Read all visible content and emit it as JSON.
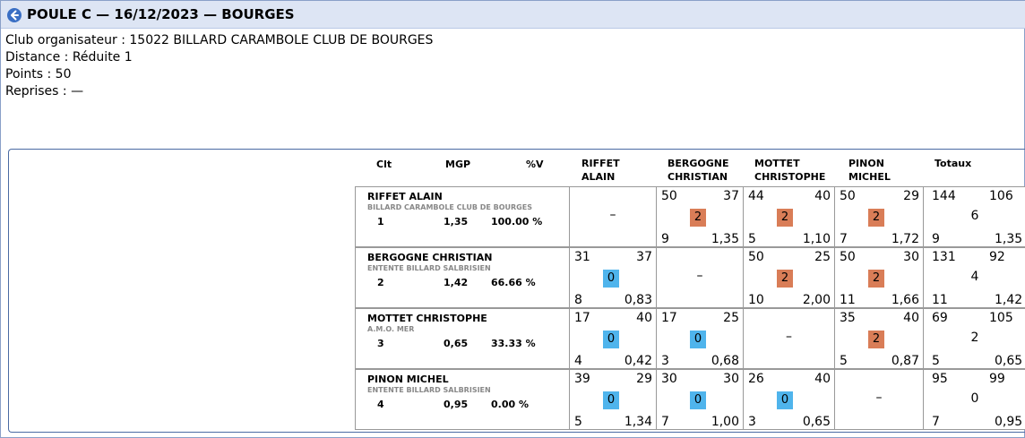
{
  "title": "POULE C — 16/12/2023 — BOURGES",
  "info": {
    "organizer": "Club organisateur : 15022 BILLARD CARAMBOLE CLUB DE BOURGES",
    "distance": "Distance : Réduite 1",
    "points": "Points : 50",
    "reprises": "Reprises : —"
  },
  "columns": {
    "clt": "Clt",
    "mgp": "MGP",
    "pv": "%V",
    "totals": "Totaux",
    "players": [
      {
        "line1": "RIFFET",
        "line2": "ALAIN"
      },
      {
        "line1": "BERGOGNE",
        "line2": "CHRISTIAN"
      },
      {
        "line1": "MOTTET",
        "line2": "CHRISTOPHE"
      },
      {
        "line1": "PINON",
        "line2": "MICHEL"
      }
    ]
  },
  "colors": {
    "win": "#d97d57",
    "loss": "#4fb4ec"
  },
  "empty_cell": "–",
  "rows": [
    {
      "name": "RIFFET ALAIN",
      "club": "BILLARD CARAMBOLE CLUB DE BOURGES",
      "rank": "1",
      "mgp": "1,35",
      "pv": "100.00 %",
      "matches": [
        null,
        {
          "points": "50",
          "opp": "37",
          "mp": "2",
          "result": "win",
          "reprises": "9",
          "avg": "1,35"
        },
        {
          "points": "44",
          "opp": "40",
          "mp": "2",
          "result": "win",
          "reprises": "5",
          "avg": "1,10"
        },
        {
          "points": "50",
          "opp": "29",
          "mp": "2",
          "result": "win",
          "reprises": "7",
          "avg": "1,72"
        }
      ],
      "totals": {
        "points": "144",
        "opp": "106",
        "mp": "6",
        "reprises": "9",
        "avg": "1,35"
      }
    },
    {
      "name": "BERGOGNE CHRISTIAN",
      "club": "ENTENTE BILLARD SALBRISIEN",
      "rank": "2",
      "mgp": "1,42",
      "pv": "66.66 %",
      "matches": [
        {
          "points": "31",
          "opp": "37",
          "mp": "0",
          "result": "loss",
          "reprises": "8",
          "avg": "0,83"
        },
        null,
        {
          "points": "50",
          "opp": "25",
          "mp": "2",
          "result": "win",
          "reprises": "10",
          "avg": "2,00"
        },
        {
          "points": "50",
          "opp": "30",
          "mp": "2",
          "result": "win",
          "reprises": "11",
          "avg": "1,66"
        }
      ],
      "totals": {
        "points": "131",
        "opp": "92",
        "mp": "4",
        "reprises": "11",
        "avg": "1,42"
      }
    },
    {
      "name": "MOTTET CHRISTOPHE",
      "club": "A.M.O. MER",
      "rank": "3",
      "mgp": "0,65",
      "pv": "33.33 %",
      "matches": [
        {
          "points": "17",
          "opp": "40",
          "mp": "0",
          "result": "loss",
          "reprises": "4",
          "avg": "0,42"
        },
        {
          "points": "17",
          "opp": "25",
          "mp": "0",
          "result": "loss",
          "reprises": "3",
          "avg": "0,68"
        },
        null,
        {
          "points": "35",
          "opp": "40",
          "mp": "2",
          "result": "win",
          "reprises": "5",
          "avg": "0,87"
        }
      ],
      "totals": {
        "points": "69",
        "opp": "105",
        "mp": "2",
        "reprises": "5",
        "avg": "0,65"
      }
    },
    {
      "name": "PINON MICHEL",
      "club": "ENTENTE BILLARD SALBRISIEN",
      "rank": "4",
      "mgp": "0,95",
      "pv": "0.00 %",
      "matches": [
        {
          "points": "39",
          "opp": "29",
          "mp": "0",
          "result": "loss",
          "reprises": "5",
          "avg": "1,34"
        },
        {
          "points": "30",
          "opp": "30",
          "mp": "0",
          "result": "loss",
          "reprises": "7",
          "avg": "1,00"
        },
        {
          "points": "26",
          "opp": "40",
          "mp": "0",
          "result": "loss",
          "reprises": "3",
          "avg": "0,65"
        },
        null
      ],
      "totals": {
        "points": "95",
        "opp": "99",
        "mp": "0",
        "reprises": "7",
        "avg": "0,95"
      }
    }
  ]
}
